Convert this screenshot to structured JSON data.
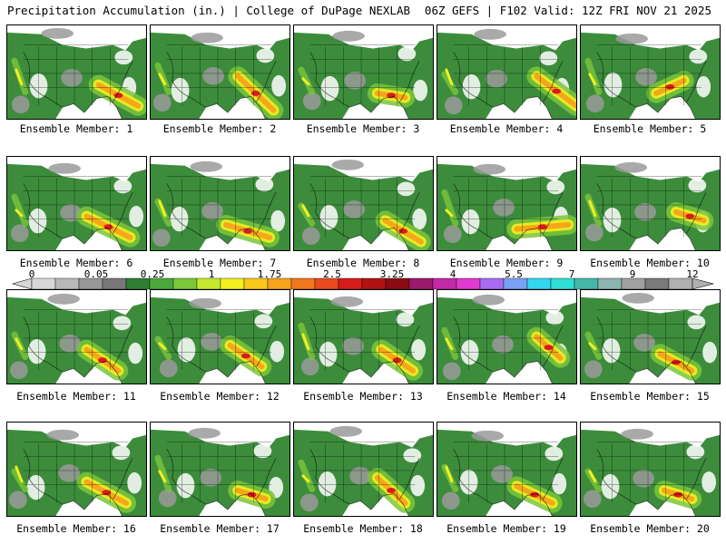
{
  "header": {
    "title": "Precipitation Accumulation (in.) | College of DuPage NEXLAB",
    "run_info": "06Z GEFS | F102 Valid: 12Z FRI NOV 21 2025"
  },
  "members": [
    {
      "label": "Ensemble Member: 1",
      "core": [
        [
          115,
          70
        ],
        [
          165,
          95
        ]
      ]
    },
    {
      "label": "Ensemble Member: 2",
      "core": [
        [
          110,
          60
        ],
        [
          155,
          100
        ]
      ]
    },
    {
      "label": "Ensemble Member: 3",
      "core": [
        [
          105,
          80
        ],
        [
          140,
          85
        ]
      ]
    },
    {
      "label": "Ensemble Member: 4",
      "core": [
        [
          125,
          60
        ],
        [
          175,
          95
        ]
      ]
    },
    {
      "label": "Ensemble Member: 5",
      "core": [
        [
          95,
          80
        ],
        [
          130,
          65
        ]
      ]
    },
    {
      "label": "Ensemble Member: 6",
      "core": [
        [
          100,
          70
        ],
        [
          155,
          95
        ]
      ]
    },
    {
      "label": "Ensemble Member: 7",
      "core": [
        [
          95,
          80
        ],
        [
          150,
          95
        ]
      ]
    },
    {
      "label": "Ensemble Member: 8",
      "core": [
        [
          115,
          75
        ],
        [
          160,
          100
        ]
      ]
    },
    {
      "label": "Ensemble Member: 9",
      "core": [
        [
          100,
          85
        ],
        [
          165,
          80
        ]
      ]
    },
    {
      "label": "Ensemble Member: 10",
      "core": [
        [
          120,
          65
        ],
        [
          155,
          75
        ]
      ]
    },
    {
      "label": "Ensemble Member: 11",
      "core": [
        [
          100,
          70
        ],
        [
          140,
          95
        ]
      ]
    },
    {
      "label": "Ensemble Member: 12",
      "core": [
        [
          100,
          65
        ],
        [
          140,
          90
        ]
      ]
    },
    {
      "label": "Ensemble Member: 13",
      "core": [
        [
          110,
          70
        ],
        [
          150,
          95
        ]
      ]
    },
    {
      "label": "Ensemble Member: 14",
      "core": [
        [
          125,
          55
        ],
        [
          155,
          80
        ]
      ]
    },
    {
      "label": "Ensemble Member: 15",
      "core": [
        [
          100,
          75
        ],
        [
          140,
          95
        ]
      ]
    },
    {
      "label": "Ensemble Member: 16",
      "core": [
        [
          100,
          70
        ],
        [
          150,
          95
        ]
      ]
    },
    {
      "label": "Ensemble Member: 17",
      "core": [
        [
          110,
          80
        ],
        [
          145,
          90
        ]
      ]
    },
    {
      "label": "Ensemble Member: 18",
      "core": [
        [
          105,
          65
        ],
        [
          140,
          95
        ]
      ]
    },
    {
      "label": "Ensemble Member: 19",
      "core": [
        [
          100,
          75
        ],
        [
          145,
          95
        ]
      ]
    },
    {
      "label": "Ensemble Member: 20",
      "core": [
        [
          105,
          80
        ],
        [
          140,
          90
        ]
      ]
    }
  ],
  "legend": {
    "labels": [
      "0",
      "0.05",
      "0.25",
      "1",
      "1.75",
      "2.5",
      "3.25",
      "4",
      "5.5",
      "7",
      "9",
      "12"
    ],
    "colors": [
      "#d8d8d8",
      "#b8b8b8",
      "#989898",
      "#787878",
      "#2e7d32",
      "#4aa83a",
      "#7cc63a",
      "#c6e82c",
      "#f4f020",
      "#f9c81a",
      "#f7a31b",
      "#f2781f",
      "#ea4a1e",
      "#d81c1c",
      "#b01212",
      "#8a0c12",
      "#9c1a6c",
      "#c22aa8",
      "#e03ad0",
      "#a86cf0",
      "#7aa0f5",
      "#33d6f0",
      "#2fe0d6",
      "#45b6a8",
      "#8cb4b0",
      "#a0a0a0",
      "#7a7a7a",
      "#b0b0b0"
    ]
  },
  "colors": {
    "land": "#3c8c3c",
    "light_precip": "#7cc63a",
    "moderate_precip": "#f4f020",
    "heavy_precip": "#f7a31b",
    "extreme_precip": "#d81c1c",
    "dry_land": "#9a9a9a",
    "water": "#ffffff"
  }
}
